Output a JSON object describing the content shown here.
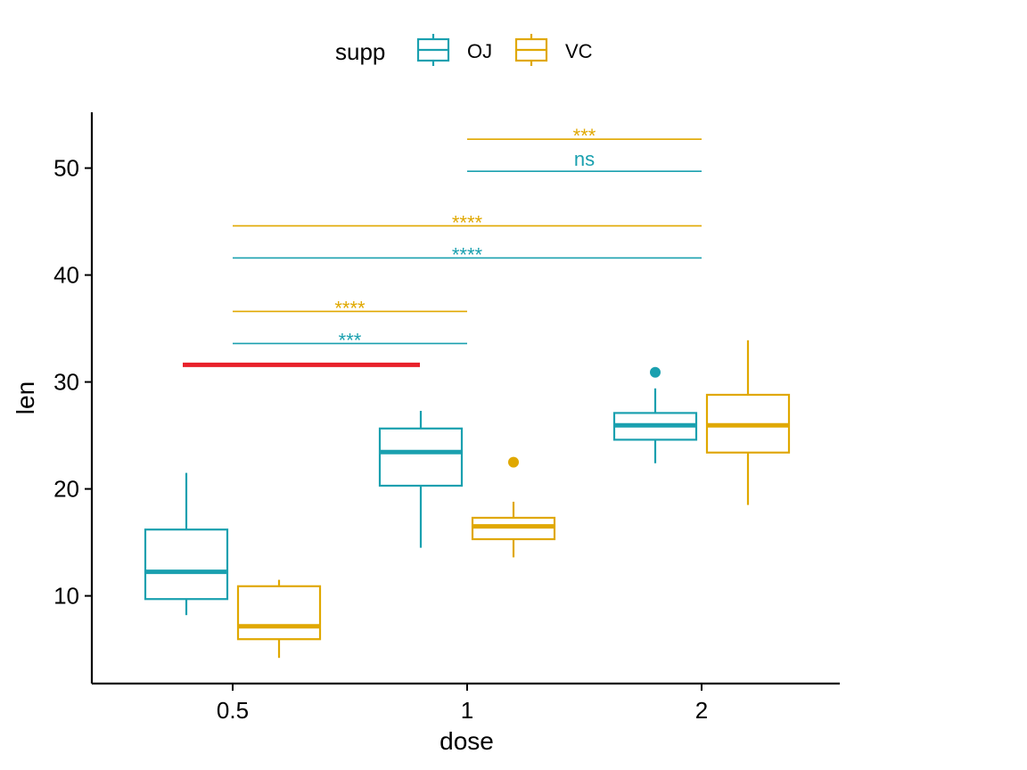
{
  "chart_data": {
    "type": "box",
    "xlabel": "dose",
    "ylabel": "len",
    "categories": [
      "0.5",
      "1",
      "2"
    ],
    "ylim": [
      3,
      55
    ],
    "yticks": [
      10,
      20,
      30,
      40,
      50
    ],
    "legend": {
      "title": "supp",
      "position": "top"
    },
    "series": [
      {
        "name": "OJ",
        "color": "#1AA0AF",
        "boxes": [
          {
            "dose": "0.5",
            "min": 8.2,
            "q1": 9.7,
            "median": 12.25,
            "q3": 16.2,
            "max": 21.5,
            "outliers": []
          },
          {
            "dose": "1",
            "min": 14.5,
            "q1": 20.3,
            "median": 23.45,
            "q3": 25.65,
            "max": 27.3,
            "outliers": []
          },
          {
            "dose": "2",
            "min": 22.4,
            "q1": 24.6,
            "median": 25.95,
            "q3": 27.1,
            "max": 29.4,
            "outliers": [
              30.9
            ]
          }
        ]
      },
      {
        "name": "VC",
        "color": "#E0A800",
        "boxes": [
          {
            "dose": "0.5",
            "min": 4.2,
            "q1": 5.95,
            "median": 7.15,
            "q3": 10.9,
            "max": 11.5,
            "outliers": []
          },
          {
            "dose": "1",
            "min": 13.6,
            "q1": 15.3,
            "median": 16.5,
            "q3": 17.3,
            "max": 18.8,
            "outliers": [
              22.5
            ]
          },
          {
            "dose": "2",
            "min": 18.5,
            "q1": 23.4,
            "median": 25.95,
            "q3": 28.8,
            "max": 33.9,
            "outliers": []
          }
        ]
      }
    ],
    "comparisons": [
      {
        "group": "OJ",
        "from": "0.5",
        "to": "1",
        "y": 33.6,
        "label": "***"
      },
      {
        "group": "VC",
        "from": "0.5",
        "to": "1",
        "y": 36.6,
        "label": "****"
      },
      {
        "group": "OJ",
        "from": "0.5",
        "to": "2",
        "y": 41.6,
        "label": "****"
      },
      {
        "group": "VC",
        "from": "0.5",
        "to": "2",
        "y": 44.6,
        "label": "****"
      },
      {
        "group": "OJ",
        "from": "1",
        "to": "2",
        "y": 49.7,
        "label": "ns"
      },
      {
        "group": "VC",
        "from": "1",
        "to": "2",
        "y": 52.7,
        "label": "***"
      }
    ],
    "reference_line": {
      "y": 31.6,
      "x_from": "0.5",
      "x_to": "1",
      "color": "#E8202A"
    }
  }
}
